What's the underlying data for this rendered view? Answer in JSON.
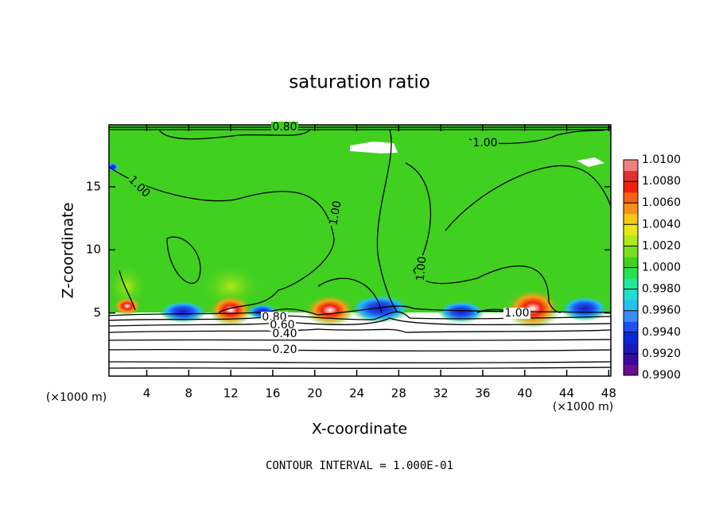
{
  "chart_data": {
    "type": "contour",
    "title": "saturation ratio",
    "x_label": "X-coordinate",
    "y_label": "Z-coordinate",
    "x_unit": "(×1000 m)",
    "y_unit": "(×1000 m)",
    "xlim": [
      0.4,
      48.2
    ],
    "xticks": [
      4,
      8,
      12,
      16,
      20,
      24,
      28,
      32,
      36,
      40,
      44,
      48
    ],
    "ylim": [
      0,
      19.9
    ],
    "yticks": [
      5,
      10,
      15
    ],
    "colorbar": {
      "lim": [
        0.99,
        1.01
      ],
      "ticks": [
        {
          "value": 0.99,
          "label": "0.9900"
        },
        {
          "value": 0.992,
          "label": "0.9920"
        },
        {
          "value": 0.994,
          "label": "0.9940"
        },
        {
          "value": 0.996,
          "label": "0.9960"
        },
        {
          "value": 0.998,
          "label": "0.9980"
        },
        {
          "value": 1.0,
          "label": "1.0000"
        },
        {
          "value": 1.002,
          "label": "1.0020"
        },
        {
          "value": 1.004,
          "label": "1.0040"
        },
        {
          "value": 1.006,
          "label": "1.0060"
        },
        {
          "value": 1.008,
          "label": "1.0080"
        },
        {
          "value": 1.01,
          "label": "1.0100"
        }
      ],
      "colors": [
        "#6a0d8f",
        "#3c0a9e",
        "#1a1ab8",
        "#0a28d8",
        "#1e50f0",
        "#3c8cf8",
        "#28c0f0",
        "#20e0d0",
        "#20e8a0",
        "#28e050",
        "#40d020",
        "#78e020",
        "#b0e818",
        "#e8e818",
        "#f8c818",
        "#f89018",
        "#f86018",
        "#f02010",
        "#e03030",
        "#f08080"
      ]
    },
    "contour_labels": [
      "0.80",
      "1.00",
      "1.00",
      "1.00",
      "1.00",
      "1.00",
      "0.80",
      "0.60",
      "0.40",
      "0.20"
    ],
    "footer": "CONTOUR INTERVAL = 1.000E-01"
  }
}
